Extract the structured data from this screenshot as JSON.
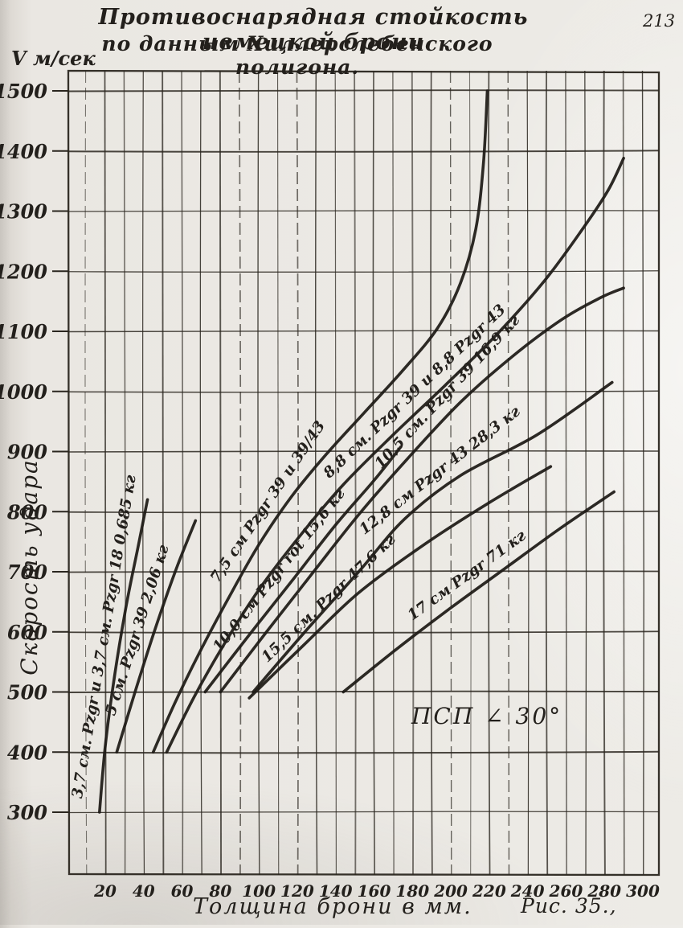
{
  "page": {
    "number": "213",
    "title_line1": "Противоснарядная стойкость немецкой брони",
    "title_line2": "по данным Хиллерслебенского полигона.",
    "caption": "Рис. 35.,"
  },
  "chart_data": {
    "type": "line",
    "title": "Противоснарядная стойкость немецкой брони по данным Хиллерслебенского полигона",
    "xlabel": "Толщина брони в мм.",
    "ylabel": "Скорость удара",
    "y_unit_label": "V м/сек",
    "annotation": "ПСП ∠ 30°",
    "grid": true,
    "legend_position": "labels-along-curves",
    "xlim": [
      10,
      308
    ],
    "ylim": [
      200,
      1530
    ],
    "x_minor_step": 10,
    "x_ticks": [
      20,
      40,
      60,
      80,
      100,
      120,
      140,
      160,
      180,
      200,
      220,
      240,
      260,
      280,
      300
    ],
    "y_ticks": [
      300,
      400,
      500,
      600,
      700,
      800,
      900,
      1000,
      1100,
      1200,
      1300,
      1400,
      1500
    ],
    "ink_color": "#2a261f",
    "curve_color": "#1d1a16",
    "series": [
      {
        "name": "3,7 см. Pzgr и 3,7 см. Pzgr 18  0,685 кг",
        "label_t": 0.55,
        "points": [
          [
            17,
            300
          ],
          [
            20,
            410
          ],
          [
            25,
            530
          ],
          [
            31,
            645
          ],
          [
            37,
            740
          ],
          [
            42,
            820
          ]
        ]
      },
      {
        "name": "5 см. Pzgr 39  2,06 кг",
        "label_t": 0.5,
        "points": [
          [
            26,
            400
          ],
          [
            36,
            505
          ],
          [
            46,
            605
          ],
          [
            57,
            705
          ],
          [
            67,
            785
          ]
        ]
      },
      {
        "name": "7,5 см Pzgr 39 и 39/43",
        "label_t": 0.36,
        "points": [
          [
            45,
            400
          ],
          [
            56,
            480
          ],
          [
            69,
            565
          ],
          [
            84,
            655
          ],
          [
            100,
            745
          ],
          [
            117,
            825
          ],
          [
            135,
            895
          ],
          [
            155,
            965
          ],
          [
            175,
            1035
          ],
          [
            193,
            1105
          ],
          [
            205,
            1180
          ],
          [
            213,
            1270
          ],
          [
            217,
            1380
          ],
          [
            219,
            1500
          ]
        ]
      },
      {
        "name": "8,8 см. Pzgr 39 и 8,8 Pzgr 43",
        "label_t": 0.58,
        "points": [
          [
            52,
            400
          ],
          [
            66,
            490
          ],
          [
            82,
            580
          ],
          [
            100,
            670
          ],
          [
            122,
            762
          ],
          [
            144,
            845
          ],
          [
            170,
            928
          ],
          [
            197,
            1010
          ],
          [
            224,
            1095
          ],
          [
            249,
            1185
          ],
          [
            269,
            1272
          ],
          [
            282,
            1335
          ],
          [
            290,
            1388
          ]
        ]
      },
      {
        "name": "10,0 см Pzgr rot 15,6 кг",
        "label_t": 0.45,
        "points": [
          [
            72,
            500
          ],
          [
            95,
            595
          ],
          [
            118,
            688
          ],
          [
            140,
            778
          ],
          [
            160,
            852
          ],
          [
            174,
            908
          ]
        ]
      },
      {
        "name": "10,5 см. Pzgr 39 16,9 кг",
        "label_t": 0.65,
        "points": [
          [
            80,
            500
          ],
          [
            104,
            600
          ],
          [
            128,
            698
          ],
          [
            152,
            795
          ],
          [
            178,
            890
          ],
          [
            205,
            982
          ],
          [
            232,
            1058
          ],
          [
            258,
            1120
          ],
          [
            278,
            1156
          ],
          [
            290,
            1172
          ]
        ]
      },
      {
        "name": "12,8 см Pzgr 43  28,3 кг",
        "label_t": 0.6,
        "points": [
          [
            97,
            500
          ],
          [
            124,
            600
          ],
          [
            152,
            700
          ],
          [
            176,
            788
          ],
          [
            205,
            860
          ],
          [
            245,
            928
          ],
          [
            284,
            1015
          ]
        ]
      },
      {
        "name": "15,5 см. Pzgr 47,6 кг",
        "label_t": 0.33,
        "points": [
          [
            95,
            490
          ],
          [
            124,
            580
          ],
          [
            152,
            665
          ],
          [
            186,
            745
          ],
          [
            220,
            815
          ],
          [
            252,
            875
          ]
        ]
      },
      {
        "name": "17 см Pzgr 71 кг",
        "label_t": 0.5,
        "points": [
          [
            144,
            500
          ],
          [
            172,
            572
          ],
          [
            200,
            640
          ],
          [
            228,
            705
          ],
          [
            256,
            770
          ],
          [
            285,
            833
          ]
        ]
      }
    ]
  }
}
